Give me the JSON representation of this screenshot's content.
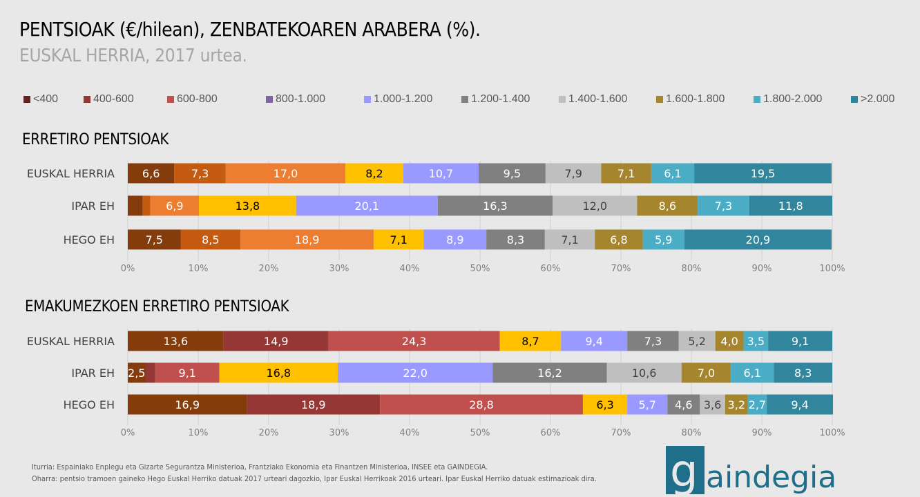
{
  "title": "PENTSIOAK (€/hilean), ZENBATEKOAREN ARABERA (%).",
  "subtitle": "EUSKAL HERRIA, 2017 urtea.",
  "legend": [
    {
      "label": "<400",
      "color": "#632523"
    },
    {
      "label": "400-600",
      "color": "#953735"
    },
    {
      "label": "600-800",
      "color": "#C0504D"
    },
    {
      "label": "800-1.000",
      "color": "#8064A2"
    },
    {
      "label": "1.000-1.200",
      "color": "#9999FF"
    },
    {
      "label": "1.200-1.400",
      "color": "#808080"
    },
    {
      "label": "1.400-1.600",
      "color": "#BFBFBF"
    },
    {
      "label": "1.600-1.800",
      "color": "#A5862F"
    },
    {
      "label": "1.800-2.000",
      "color": "#4BACC6"
    },
    {
      "label": ">2.000",
      "color": "#31859C"
    }
  ],
  "chart_data": [
    {
      "type": "bar",
      "stacked": true,
      "orientation": "horizontal",
      "title": "ERRETIRO PENTSIOAK",
      "categories": [
        "EUSKAL HERRIA",
        "IPAR EH",
        "HEGO EH"
      ],
      "xlim": [
        0,
        100
      ],
      "xticks": [
        "0%",
        "10%",
        "20%",
        "30%",
        "40%",
        "50%",
        "60%",
        "70%",
        "80%",
        "90%",
        "100%"
      ],
      "grid": true,
      "colors": [
        "#843C0C",
        "#C55A11",
        "#ED7D31",
        "#FFC000",
        "#9999FF",
        "#808080",
        "#BFBFBF",
        "#A5862F",
        "#4BACC6",
        "#31859C"
      ],
      "rows": [
        [
          6.6,
          7.3,
          17.0,
          8.2,
          10.7,
          9.5,
          7.9,
          7.1,
          6.1,
          19.5
        ],
        [
          2.1,
          1.1,
          6.9,
          13.8,
          20.1,
          16.3,
          12.0,
          8.6,
          7.3,
          11.8
        ],
        [
          7.5,
          8.5,
          18.9,
          7.1,
          8.9,
          8.3,
          7.1,
          6.8,
          5.9,
          20.9
        ]
      ],
      "labels": [
        [
          "6,6",
          "7,3",
          "17,0",
          "8,2",
          "10,7",
          "9,5",
          "7,9",
          "7,1",
          "6,1",
          "19,5"
        ],
        [
          "",
          "",
          "6,9",
          "13,8",
          "20,1",
          "16,3",
          "12,0",
          "8,6",
          "7,3",
          "11,8"
        ],
        [
          "7,5",
          "8,5",
          "18,9",
          "7,1",
          "8,9",
          "8,3",
          "7,1",
          "6,8",
          "5,9",
          "20,9"
        ]
      ]
    },
    {
      "type": "bar",
      "stacked": true,
      "orientation": "horizontal",
      "title": "EMAKUMEZKOEN ERRETIRO PENTSIOAK",
      "categories": [
        "EUSKAL HERRIA",
        "IPAR EH",
        "HEGO EH"
      ],
      "xlim": [
        0,
        100
      ],
      "xticks": [
        "0%",
        "10%",
        "20%",
        "30%",
        "40%",
        "50%",
        "60%",
        "70%",
        "80%",
        "90%",
        "100%"
      ],
      "grid": true,
      "colors": [
        "#843C0C",
        "#953735",
        "#C0504D",
        "#FFC000",
        "#9999FF",
        "#808080",
        "#BFBFBF",
        "#A5862F",
        "#4BACC6",
        "#31859C"
      ],
      "rows": [
        [
          13.6,
          14.9,
          24.3,
          8.7,
          9.4,
          7.3,
          5.2,
          4.0,
          3.5,
          9.1
        ],
        [
          2.5,
          1.4,
          9.1,
          16.8,
          22.0,
          16.2,
          10.6,
          7.0,
          6.1,
          8.3
        ],
        [
          16.9,
          18.9,
          28.8,
          6.3,
          5.7,
          4.6,
          3.6,
          3.2,
          2.7,
          9.4
        ]
      ],
      "labels": [
        [
          "13,6",
          "14,9",
          "24,3",
          "8,7",
          "9,4",
          "7,3",
          "5,2",
          "4,0",
          "3,5",
          "9,1"
        ],
        [
          "2,5",
          "",
          "9,1",
          "16,8",
          "22,0",
          "16,2",
          "10,6",
          "7,0",
          "6,1",
          "8,3"
        ],
        [
          "16,9",
          "18,9",
          "28,8",
          "6,3",
          "5,7",
          "4,6",
          "3,6",
          "3,2",
          "2,7",
          "9,4"
        ]
      ]
    }
  ],
  "footer": {
    "source": "Iturria: Espainiako Enplegu eta Gizarte Segurantza Ministerioa, Frantziako Ekonomia eta Finantzen Ministerioa, INSEE eta GAINDEGIA.",
    "note": "Oharra: pentsio tramoen gaineko Hego Euskal Herriko datuak 2017 urteari dagozkio, Ipar Euskal Herrikoak 2016 urteari. Ipar Euskal Herriko datuak estimazioak dira."
  },
  "logo": "gaindegia"
}
